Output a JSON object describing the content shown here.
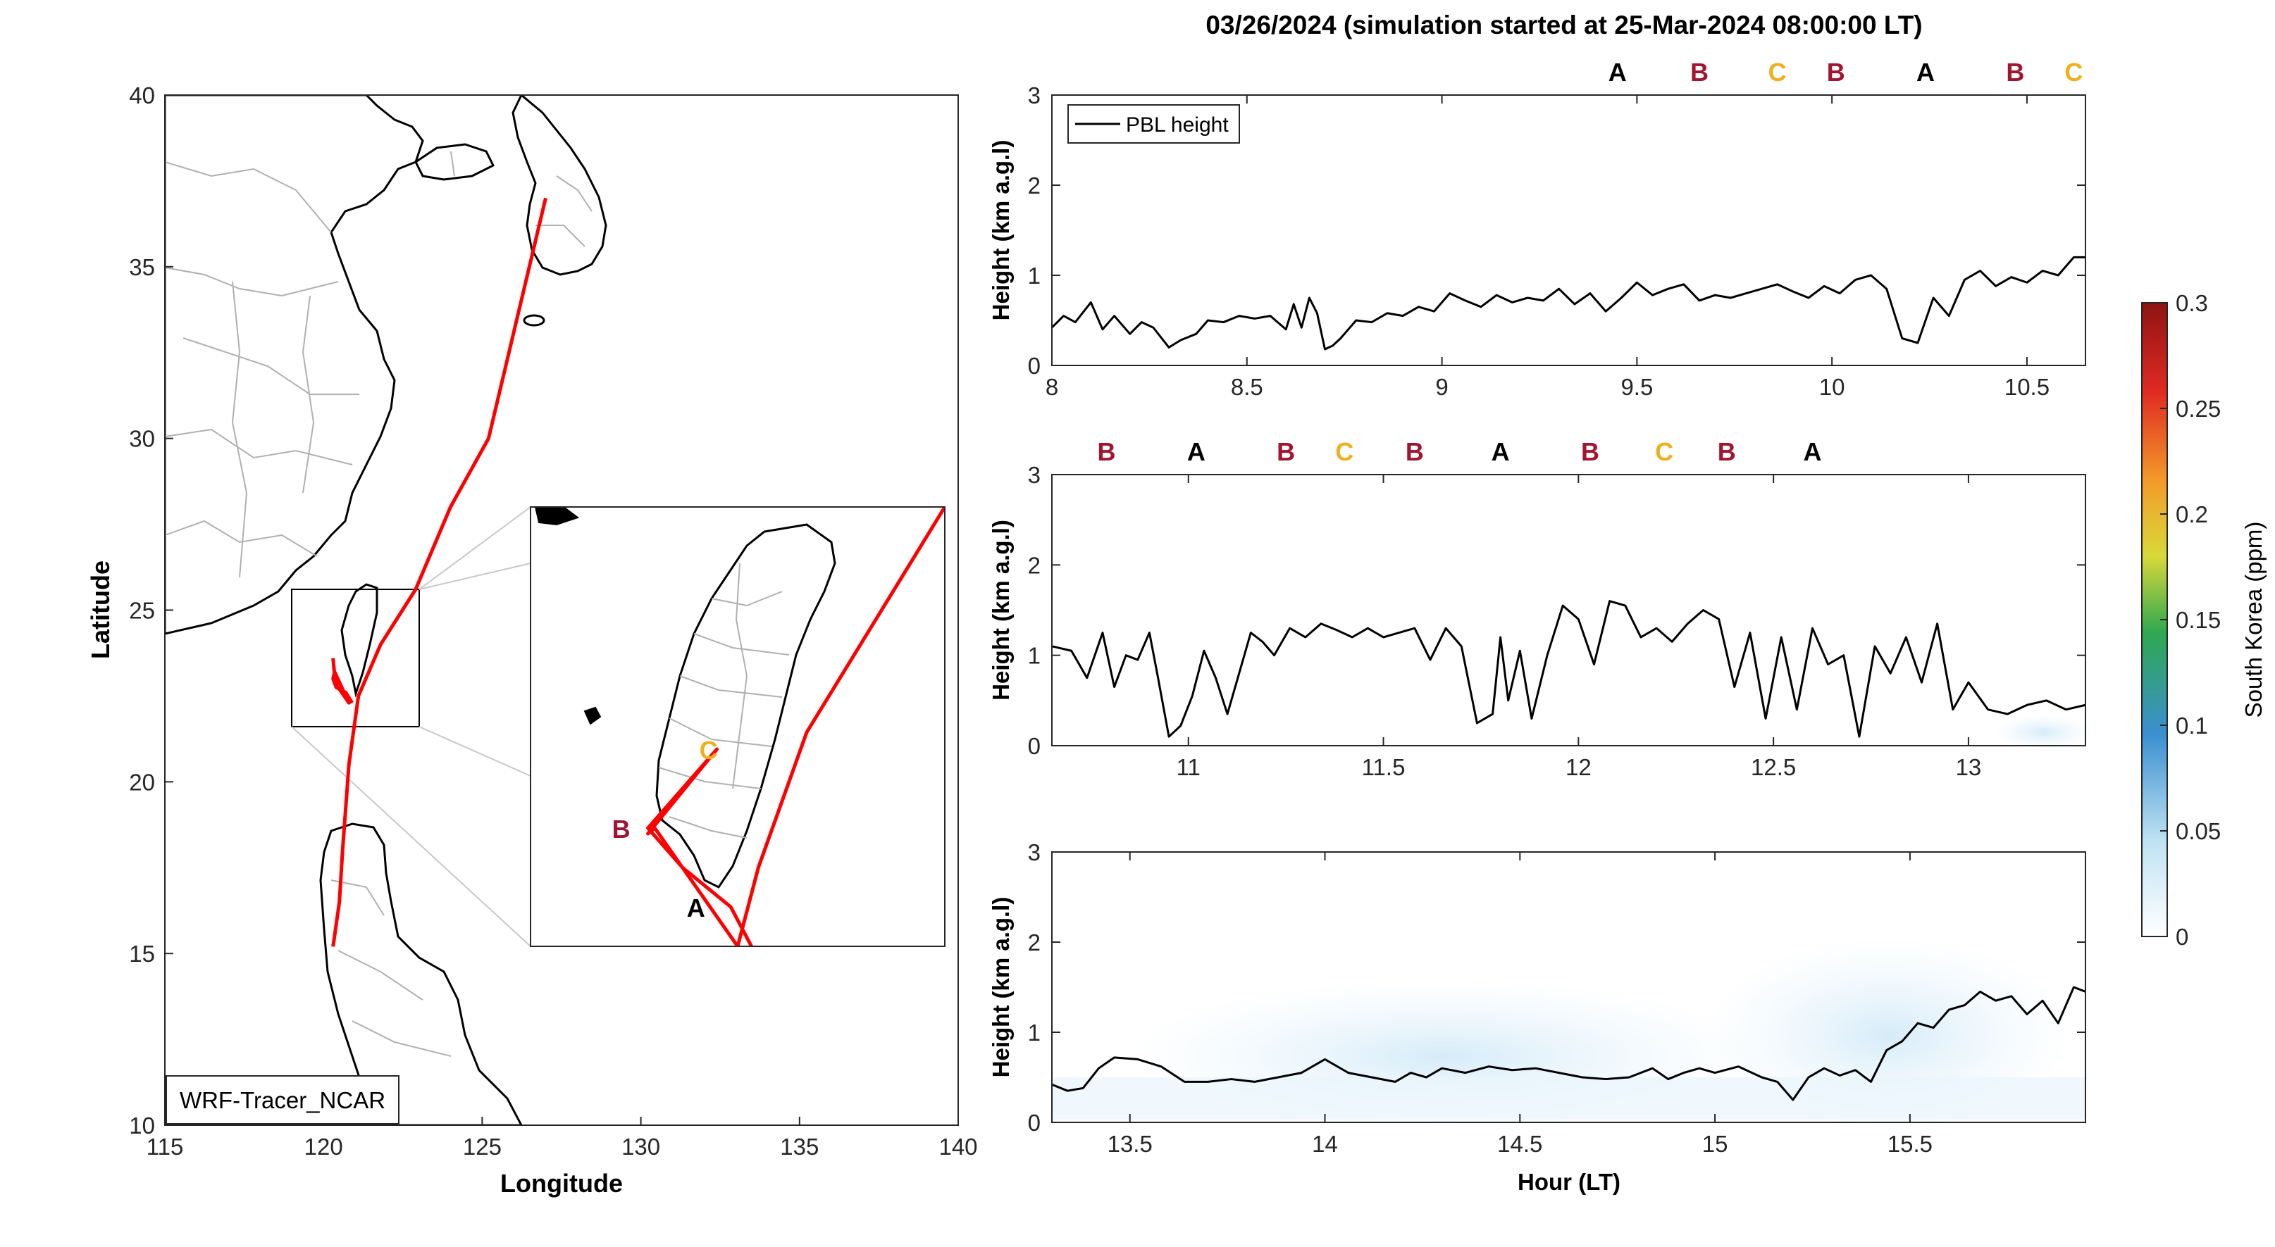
{
  "figure": {
    "title": "03/26/2024 (simulation started at 25-Mar-2024 08:00:00 LT)",
    "colors": {
      "A": "#000000",
      "B": "#a2142f",
      "C": "#edb120",
      "track": "#ff0000",
      "pbl": "#000000",
      "coast": "#000000",
      "border": "#b0b0b0"
    }
  },
  "chart_data": [
    {
      "type": "map",
      "xlabel": "Longitude",
      "ylabel": "Latitude",
      "xlim": [
        115,
        140
      ],
      "ylim": [
        10,
        40
      ],
      "xticks": [
        115,
        120,
        125,
        130,
        135,
        140
      ],
      "yticks": [
        10,
        15,
        20,
        25,
        30,
        35,
        40
      ],
      "label_box": "WRF-Tracer_NCAR",
      "flight_track": {
        "lon": [
          127.0,
          126.1,
          125.2,
          124.0,
          122.9,
          121.8,
          121.1,
          120.8,
          120.6,
          120.5,
          120.3
        ],
        "lat": [
          37.0,
          33.5,
          30.0,
          28.0,
          25.6,
          24.0,
          22.5,
          20.5,
          18.0,
          16.5,
          15.2
        ]
      },
      "taiwan_track": {
        "lon": [
          120.3,
          120.35,
          120.5,
          120.8,
          120.35,
          120.3,
          120.4,
          120.7,
          120.9
        ],
        "lat": [
          23.6,
          23.1,
          22.7,
          22.3,
          23.2,
          23.0,
          22.75,
          22.6,
          22.3
        ]
      },
      "inset": {
        "xlim": [
          119.2,
          122.2
        ],
        "ylim": [
          21.5,
          25.4
        ],
        "points": [
          {
            "label": "C",
            "lon": 120.55,
            "lat": 23.25
          },
          {
            "label": "B",
            "lon": 120.05,
            "lat": 22.55
          },
          {
            "label": "A",
            "lon": 120.5,
            "lat": 21.85
          }
        ]
      }
    },
    {
      "type": "line",
      "ylabel": "Height (km a.g.l)",
      "xlim": [
        8.0,
        10.65
      ],
      "ylim": [
        0,
        3
      ],
      "xticks": [
        8,
        8.5,
        9,
        9.5,
        10,
        10.5
      ],
      "yticks": [
        0,
        1,
        2,
        3
      ],
      "legend": "PBL height",
      "segment_labels": [
        {
          "text": "A",
          "x": 9.45
        },
        {
          "text": "B",
          "x": 9.66
        },
        {
          "text": "C",
          "x": 9.86
        },
        {
          "text": "B",
          "x": 10.01
        },
        {
          "text": "A",
          "x": 10.24
        },
        {
          "text": "B",
          "x": 10.47
        },
        {
          "text": "C",
          "x": 10.62
        }
      ],
      "series": [
        {
          "x": [
            8.0,
            8.03,
            8.06,
            8.1,
            8.13,
            8.16,
            8.2,
            8.23,
            8.26,
            8.3,
            8.33,
            8.37,
            8.4,
            8.44,
            8.48,
            8.52,
            8.56,
            8.6,
            8.62,
            8.64,
            8.66,
            8.68,
            8.7,
            8.72,
            8.74,
            8.78,
            8.82,
            8.86,
            8.9,
            8.94,
            8.98,
            9.02,
            9.06,
            9.1,
            9.14,
            9.18,
            9.22,
            9.26,
            9.3,
            9.34,
            9.38,
            9.42,
            9.46,
            9.5,
            9.54,
            9.58,
            9.62,
            9.66,
            9.7,
            9.74,
            9.78,
            9.82,
            9.86,
            9.9,
            9.94,
            9.98,
            10.02,
            10.06,
            10.1,
            10.14,
            10.18,
            10.22,
            10.26,
            10.3,
            10.34,
            10.38,
            10.42,
            10.46,
            10.5,
            10.54,
            10.58,
            10.62,
            10.65
          ],
          "y": [
            0.42,
            0.55,
            0.48,
            0.7,
            0.4,
            0.55,
            0.35,
            0.48,
            0.42,
            0.2,
            0.28,
            0.35,
            0.5,
            0.48,
            0.55,
            0.52,
            0.55,
            0.4,
            0.68,
            0.42,
            0.75,
            0.58,
            0.18,
            0.22,
            0.3,
            0.5,
            0.48,
            0.58,
            0.55,
            0.65,
            0.6,
            0.8,
            0.72,
            0.65,
            0.78,
            0.7,
            0.75,
            0.72,
            0.85,
            0.68,
            0.8,
            0.6,
            0.75,
            0.92,
            0.78,
            0.85,
            0.9,
            0.72,
            0.78,
            0.75,
            0.8,
            0.85,
            0.9,
            0.82,
            0.75,
            0.88,
            0.8,
            0.95,
            1.0,
            0.85,
            0.3,
            0.25,
            0.75,
            0.55,
            0.95,
            1.05,
            0.88,
            0.98,
            0.92,
            1.05,
            1.0,
            1.2,
            1.2
          ]
        }
      ]
    },
    {
      "type": "line",
      "ylabel": "Height (km a.g.l)",
      "xlim": [
        10.65,
        13.3
      ],
      "ylim": [
        0,
        3
      ],
      "xticks": [
        11,
        11.5,
        12,
        12.5,
        13
      ],
      "yticks": [
        0,
        1,
        2,
        3
      ],
      "segment_labels": [
        {
          "text": "B",
          "x": 10.79
        },
        {
          "text": "A",
          "x": 11.02
        },
        {
          "text": "B",
          "x": 11.25
        },
        {
          "text": "C",
          "x": 11.4
        },
        {
          "text": "B",
          "x": 11.58
        },
        {
          "text": "A",
          "x": 11.8
        },
        {
          "text": "B",
          "x": 12.03
        },
        {
          "text": "C",
          "x": 12.22
        },
        {
          "text": "B",
          "x": 12.38
        },
        {
          "text": "A",
          "x": 12.6
        }
      ],
      "series": [
        {
          "x": [
            10.65,
            10.7,
            10.74,
            10.78,
            10.81,
            10.84,
            10.87,
            10.9,
            10.92,
            10.95,
            10.98,
            11.01,
            11.04,
            11.07,
            11.1,
            11.13,
            11.16,
            11.19,
            11.22,
            11.26,
            11.3,
            11.34,
            11.38,
            11.42,
            11.46,
            11.5,
            11.54,
            11.58,
            11.62,
            11.66,
            11.7,
            11.74,
            11.78,
            11.8,
            11.82,
            11.85,
            11.88,
            11.92,
            11.96,
            12.0,
            12.04,
            12.08,
            12.12,
            12.16,
            12.2,
            12.24,
            12.28,
            12.32,
            12.36,
            12.4,
            12.44,
            12.48,
            12.52,
            12.56,
            12.6,
            12.64,
            12.68,
            12.72,
            12.76,
            12.8,
            12.84,
            12.88,
            12.92,
            12.96,
            13.0,
            13.05,
            13.1,
            13.15,
            13.2,
            13.25,
            13.3
          ],
          "y": [
            1.1,
            1.05,
            0.75,
            1.25,
            0.65,
            1.0,
            0.95,
            1.25,
            0.8,
            0.1,
            0.22,
            0.55,
            1.05,
            0.75,
            0.35,
            0.8,
            1.25,
            1.15,
            1.0,
            1.3,
            1.2,
            1.35,
            1.28,
            1.2,
            1.3,
            1.2,
            1.25,
            1.3,
            0.95,
            1.3,
            1.1,
            0.25,
            0.35,
            1.2,
            0.5,
            1.05,
            0.3,
            1.0,
            1.55,
            1.4,
            0.9,
            1.6,
            1.55,
            1.2,
            1.3,
            1.15,
            1.35,
            1.5,
            1.4,
            0.65,
            1.25,
            0.3,
            1.2,
            0.4,
            1.3,
            0.9,
            1.0,
            0.1,
            1.1,
            0.8,
            1.2,
            0.7,
            1.35,
            0.4,
            0.7,
            0.4,
            0.35,
            0.45,
            0.5,
            0.4,
            0.45
          ]
        }
      ]
    },
    {
      "type": "line",
      "xlabel": "Hour (LT)",
      "ylabel": "Height (km a.g.l)",
      "xlim": [
        13.3,
        15.95
      ],
      "ylim": [
        0,
        3
      ],
      "xticks": [
        13.5,
        14,
        14.5,
        15,
        15.5
      ],
      "yticks": [
        0,
        1,
        2,
        3
      ],
      "series": [
        {
          "x": [
            13.3,
            13.34,
            13.38,
            13.42,
            13.46,
            13.52,
            13.58,
            13.64,
            13.7,
            13.76,
            13.82,
            13.88,
            13.94,
            14.0,
            14.06,
            14.12,
            14.18,
            14.22,
            14.26,
            14.3,
            14.36,
            14.42,
            14.48,
            14.54,
            14.6,
            14.66,
            14.72,
            14.78,
            14.84,
            14.88,
            14.92,
            14.96,
            15.0,
            15.06,
            15.12,
            15.16,
            15.2,
            15.24,
            15.28,
            15.32,
            15.36,
            15.4,
            15.44,
            15.48,
            15.52,
            15.56,
            15.6,
            15.64,
            15.68,
            15.72,
            15.76,
            15.8,
            15.84,
            15.88,
            15.92,
            15.95
          ],
          "y": [
            0.42,
            0.35,
            0.38,
            0.6,
            0.72,
            0.7,
            0.62,
            0.45,
            0.45,
            0.48,
            0.45,
            0.5,
            0.55,
            0.7,
            0.55,
            0.5,
            0.45,
            0.55,
            0.5,
            0.6,
            0.55,
            0.62,
            0.58,
            0.6,
            0.55,
            0.5,
            0.48,
            0.5,
            0.6,
            0.48,
            0.55,
            0.6,
            0.55,
            0.62,
            0.5,
            0.45,
            0.25,
            0.5,
            0.6,
            0.52,
            0.58,
            0.45,
            0.8,
            0.9,
            1.1,
            1.05,
            1.25,
            1.3,
            1.45,
            1.35,
            1.4,
            1.2,
            1.35,
            1.1,
            1.5,
            1.45
          ]
        }
      ]
    }
  ],
  "colorbar": {
    "label": "South Korea (ppm)",
    "ticks": [
      0,
      0.05,
      0.1,
      0.15,
      0.2,
      0.25,
      0.3
    ],
    "range": [
      0,
      0.3
    ]
  }
}
